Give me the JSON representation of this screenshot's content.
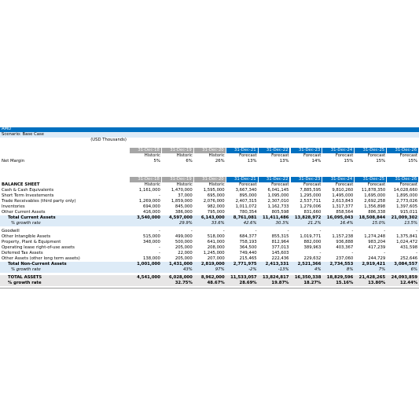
{
  "header": {
    "company": "AMD",
    "scenario": "Scenario: Base Case",
    "units": "(USD Thousands)"
  },
  "dates": [
    "31-Dec-18",
    "31-Dec-19",
    "31-Dec-20",
    "31-Dec-21",
    "31-Dec-22",
    "31-Dec-23",
    "31-Dec-24",
    "31-Dec-25",
    "31-Dec-26"
  ],
  "basis": [
    "Historic",
    "Historic",
    "Historic",
    "Forecast",
    "Forecast",
    "Forecast",
    "Forecast",
    "Forecast",
    "Forecast"
  ],
  "summary": {
    "rows": [
      {
        "label": "Net Margin",
        "values": [
          "5%",
          "6%",
          "26%",
          "13%",
          "13%",
          "14%",
          "15%",
          "15%",
          "15%"
        ]
      }
    ]
  },
  "balance_sheet": {
    "title": "BALANCE SHEET",
    "rows": [
      {
        "label": "Cash & Cash Equivalents",
        "values": [
          "1,161,000",
          "1,470,000",
          "1,595,000",
          "3,667,340",
          "6,041,145",
          "7,885,595",
          "9,810,260",
          "11,878,350",
          "14,028,660"
        ]
      },
      {
        "label": "Short Term Investements",
        "values": [
          "-",
          "37,000",
          "695,000",
          "895,000",
          "1,095,000",
          "1,295,000",
          "1,495,000",
          "1,695,000",
          "1,895,000"
        ]
      },
      {
        "label": "Trade Receivables (third party only)",
        "values": [
          "1,269,000",
          "1,859,000",
          "2,076,000",
          "2,407,315",
          "2,307,010",
          "2,537,711",
          "2,613,843",
          "2,692,258",
          "2,773,026"
        ]
      },
      {
        "label": "Inventories",
        "values": [
          "694,000",
          "845,000",
          "982,000",
          "1,011,072",
          "1,162,733",
          "1,279,006",
          "1,317,377",
          "1,356,898",
          "1,397,605"
        ]
      },
      {
        "label": "Other Current Assets",
        "values": [
          "416,000",
          "386,000",
          "795,000",
          "780,354",
          "805,598",
          "831,660",
          "858,564",
          "886,338",
          "915,011"
        ]
      },
      {
        "label": "Total Current Assets",
        "style": "total",
        "values": [
          "3,540,000",
          "4,597,000",
          "6,143,000",
          "8,761,081",
          "11,411,486",
          "13,828,972",
          "16,095,043",
          "18,508,844",
          "21,009,302"
        ]
      },
      {
        "label": "% growth rate",
        "style": "growth",
        "values": [
          null,
          "29.9%",
          "33.6%",
          "42.6%",
          "30.3%",
          "21.2%",
          "16.4%",
          "15.0%",
          "13.5%"
        ]
      },
      {
        "label": "Goodwill",
        "values": [
          "-",
          "-",
          "-",
          "-",
          "-",
          "-",
          "-",
          "-",
          "-"
        ]
      },
      {
        "label": "Other Intangible Assets",
        "values": [
          "515,000",
          "499,000",
          "518,000",
          "684,377",
          "855,315",
          "1,019,771",
          "1,157,238",
          "1,274,248",
          "1,375,841"
        ]
      },
      {
        "label": "Property, Plant & Equipment",
        "values": [
          "348,000",
          "500,000",
          "641,000",
          "758,193",
          "812,964",
          "882,000",
          "936,888",
          "983,204",
          "1,024,472"
        ]
      },
      {
        "label": "Operating lease right-of-use assets",
        "values": [
          "-",
          "205,000",
          "208,000",
          "364,500",
          "377,013",
          "389,963",
          "403,367",
          "417,239",
          "431,598"
        ]
      },
      {
        "label": "Deferred Tax Assets",
        "values": [
          "-",
          "22,000",
          "1,245,000",
          "749,440",
          "145,603",
          "-",
          "-",
          "-",
          "-"
        ]
      },
      {
        "label": "Other Assets (other long term assets)",
        "values": [
          "138,000",
          "205,000",
          "207,000",
          "215,465",
          "222,436",
          "229,632",
          "237,060",
          "244,729",
          "252,646"
        ]
      },
      {
        "label": "Total Non-Current Assets",
        "style": "total",
        "values": [
          "1,001,000",
          "1,431,000",
          "2,819,000",
          "2,771,975",
          "2,413,331",
          "2,521,366",
          "2,734,553",
          "2,919,421",
          "3,084,557"
        ]
      },
      {
        "label": "% growth rate",
        "style": "growth",
        "values": [
          null,
          "43%",
          "97%",
          "-2%",
          "-13%",
          "4%",
          "8%",
          "7%",
          "6%"
        ]
      },
      {
        "label": "TOTAL ASSETS",
        "style": "grand",
        "values": [
          "4,541,000",
          "6,028,000",
          "8,962,000",
          "11,533,057",
          "13,824,817",
          "16,350,338",
          "18,829,596",
          "21,428,265",
          "24,093,859"
        ]
      },
      {
        "label": "% growth rate",
        "style": "grandgrowth",
        "values": [
          null,
          "32.75%",
          "48.67%",
          "28.69%",
          "19.87%",
          "18.27%",
          "15.16%",
          "13.80%",
          "12.44%"
        ]
      }
    ]
  }
}
